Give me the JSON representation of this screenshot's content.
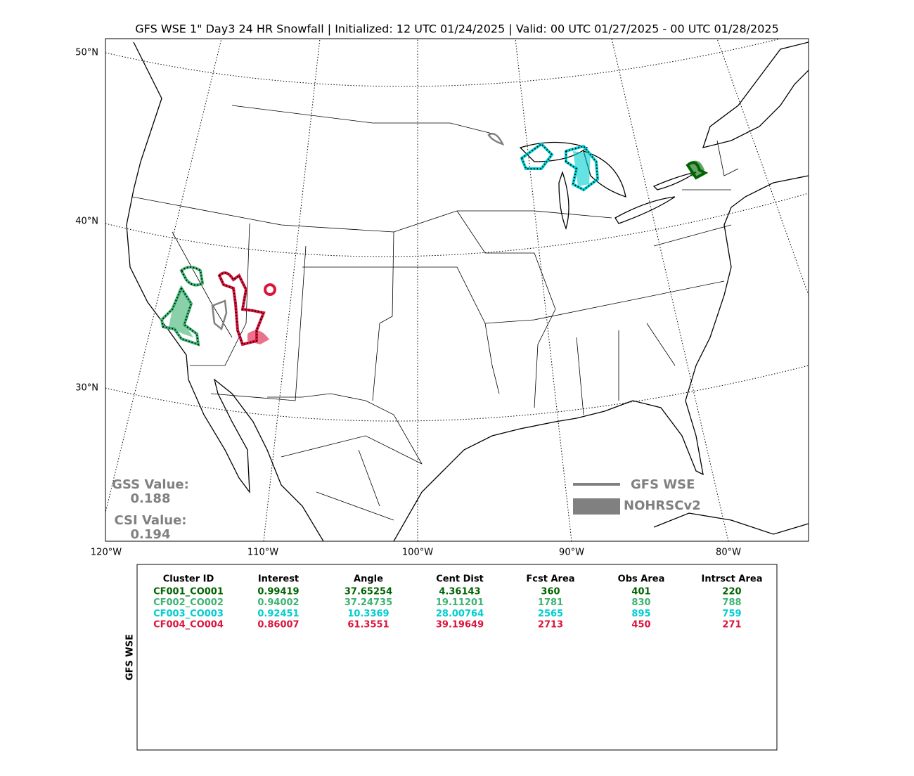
{
  "title": "GFS WSE 1\" Day3 24 HR Snowfall | Initialized: 12 UTC 01/24/2025 | Valid: 00 UTC 01/27/2025 - 00 UTC 01/28/2025",
  "map": {
    "lat_labels": [
      "50°N",
      "40°N",
      "30°N"
    ],
    "lon_labels": [
      "120°W",
      "110°W",
      "100°W",
      "90°W",
      "80°W"
    ],
    "legend": {
      "line": "GFS WSE",
      "fill": "NOHRSCv2"
    },
    "scores": {
      "gss_label": "GSS Value:",
      "gss_value": "0.188",
      "csi_label": "CSI Value:",
      "csi_value": "0.194"
    }
  },
  "table": {
    "side_label": "GFS WSE",
    "columns": [
      "Cluster ID",
      "Interest",
      "Angle",
      "Cent Dist",
      "Fcst Area",
      "Obs Area",
      "Intrsct Area"
    ],
    "rows": [
      {
        "color": "#006400",
        "cells": [
          "CF001_CO001",
          "0.99419",
          "37.65254",
          "4.36143",
          "360",
          "401",
          "220"
        ]
      },
      {
        "color": "#3cb371",
        "cells": [
          "CF002_CO002",
          "0.94002",
          "37.24735",
          "19.11201",
          "1781",
          "830",
          "788"
        ]
      },
      {
        "color": "#00ced1",
        "cells": [
          "CF003_CO003",
          "0.92451",
          "10.3369",
          "28.00764",
          "2565",
          "895",
          "759"
        ]
      },
      {
        "color": "#dc143c",
        "cells": [
          "CF004_CO004",
          "0.86007",
          "61.3551",
          "39.19649",
          "2713",
          "450",
          "271"
        ]
      }
    ]
  }
}
